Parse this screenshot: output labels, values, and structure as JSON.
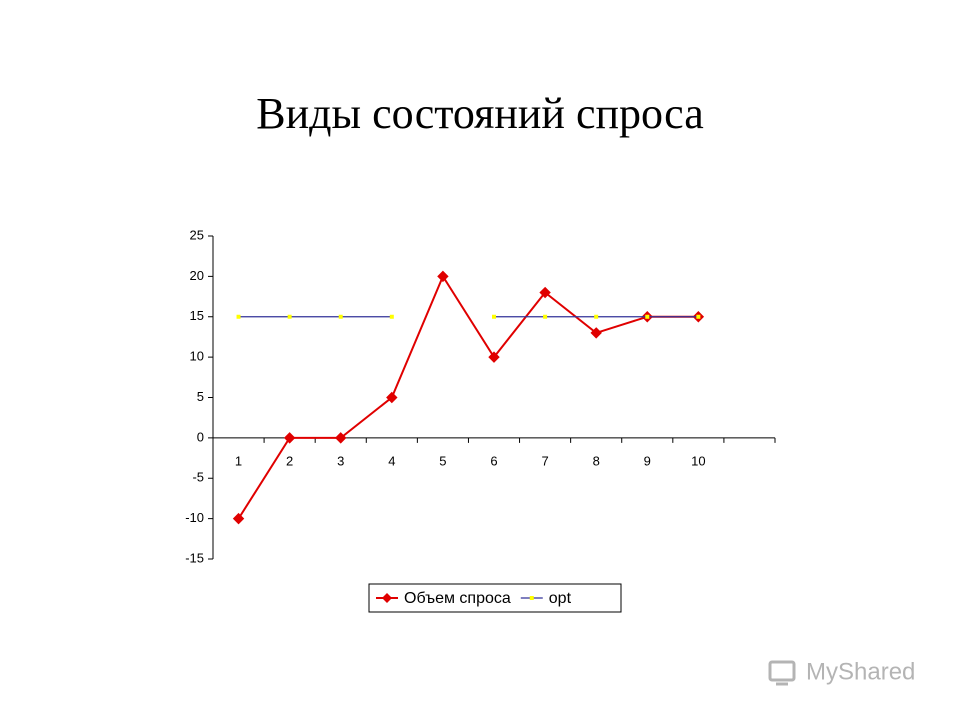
{
  "chart_data": {
    "type": "line",
    "title": "Виды состояний спроса",
    "categories": [
      "1",
      "2",
      "3",
      "4",
      "5",
      "6",
      "7",
      "8",
      "9",
      "10",
      null
    ],
    "series": [
      {
        "name": "Объем спроса",
        "color": "#e00000",
        "marker_color": "#e00000",
        "marker": "diamond",
        "values": [
          -10,
          0,
          0,
          5,
          20,
          10,
          18,
          13,
          15,
          15,
          null
        ]
      },
      {
        "name": "opt",
        "color": "#333399",
        "marker_color": "#ffff00",
        "marker": "square",
        "values": [
          15,
          15,
          15,
          15,
          null,
          15,
          15,
          15,
          15,
          15,
          null
        ]
      }
    ],
    "ylim": [
      -15,
      25
    ],
    "yticks": [
      -15,
      -10,
      -5,
      0,
      5,
      10,
      15,
      20,
      25
    ],
    "grid": false,
    "legend": "bottom"
  },
  "watermark": "MyShared"
}
